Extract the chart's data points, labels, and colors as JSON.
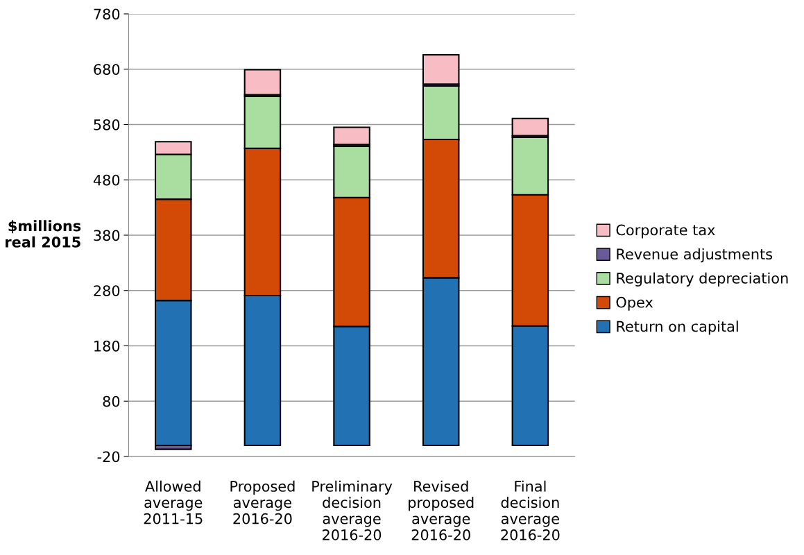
{
  "chart_data": {
    "type": "bar",
    "stacked": true,
    "categories": [
      "Allowed\naverage\n2011-15",
      "Proposed\naverage\n2016-20",
      "Preliminary\ndecision\naverage\n2016-20",
      "Revised\nproposed\naverage\n2016-20",
      "Final\ndecision\naverage\n2016-20"
    ],
    "ylabel": "$millions\nreal 2015",
    "series": [
      {
        "name": "Return on capital",
        "color": "#2271b3",
        "values": [
          262,
          271,
          215,
          303,
          216
        ]
      },
      {
        "name": "Opex",
        "color": "#d24a06",
        "values": [
          183,
          266,
          233,
          250,
          237
        ]
      },
      {
        "name": "Regulatory depreciation",
        "color": "#a9dea0",
        "values": [
          81,
          94,
          93,
          97,
          104
        ]
      },
      {
        "name": "Revenue adjustments",
        "color": "#6a5a9a",
        "values": [
          -7,
          3,
          3,
          3,
          3
        ]
      },
      {
        "name": "Corporate tax",
        "color": "#f8bcc4",
        "values": [
          23,
          45,
          31,
          53,
          31
        ]
      }
    ],
    "ylim": [
      -20,
      780
    ],
    "yticks": [
      -20,
      80,
      180,
      280,
      380,
      480,
      580,
      680,
      780
    ],
    "grid": "y",
    "legend": "right"
  }
}
